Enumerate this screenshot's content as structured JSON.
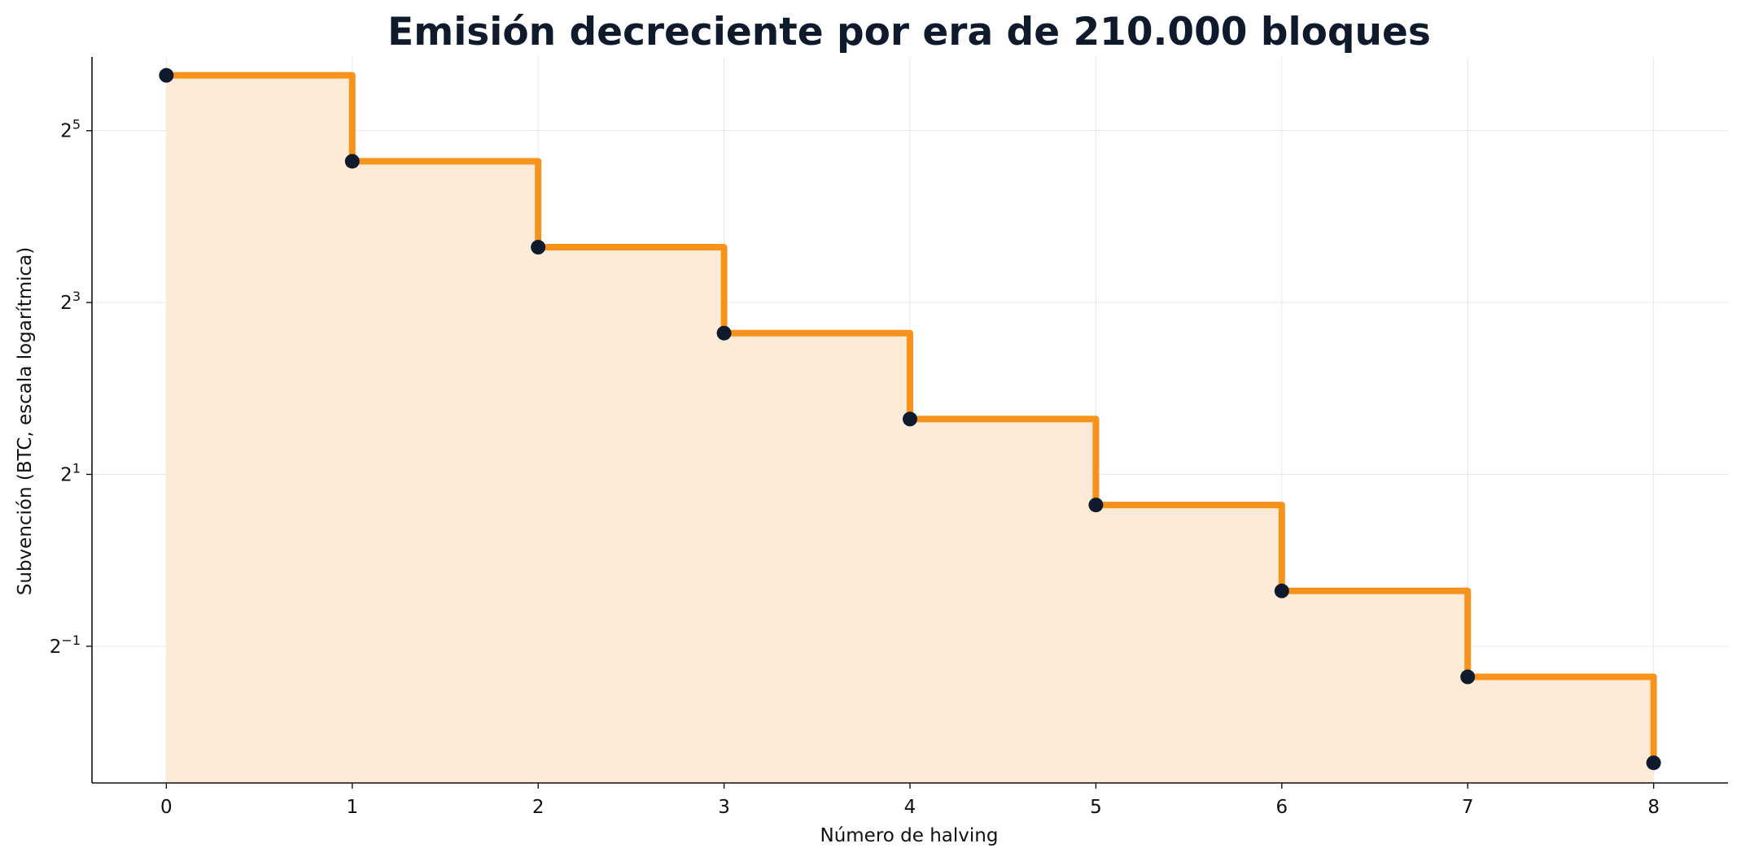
{
  "chart_data": {
    "type": "line",
    "step": "post",
    "title": "Emisión decreciente por era de 210.000 bloques",
    "xlabel": "Número de halving",
    "ylabel": "Subvención (BTC, escala logarítmica)",
    "x": [
      0,
      1,
      2,
      3,
      4,
      5,
      6,
      7,
      8
    ],
    "series": [
      {
        "values": [
          50,
          25,
          12.5,
          6.25,
          3.125,
          1.5625,
          0.78125,
          0.390625,
          0.1953125
        ]
      }
    ],
    "x_ticks": [
      "0",
      "1",
      "2",
      "3",
      "4",
      "5",
      "6",
      "7",
      "8"
    ],
    "y_ticks": [
      {
        "base": "2",
        "exp": "5",
        "value": 32
      },
      {
        "base": "2",
        "exp": "3",
        "value": 8
      },
      {
        "base": "2",
        "exp": "1",
        "value": 2
      },
      {
        "base": "2",
        "exp": "−1",
        "value": 0.5
      }
    ],
    "xlim": [
      -0.4,
      8.4
    ],
    "ylim": [
      0.166,
      58
    ],
    "y_scale": "log2",
    "grid": true,
    "colors": {
      "line": "#f7931a",
      "fill": "#fdebd8",
      "marker": "#0f1b2d",
      "title": "#0f1b2d",
      "grid": "#e6e6e6"
    }
  }
}
